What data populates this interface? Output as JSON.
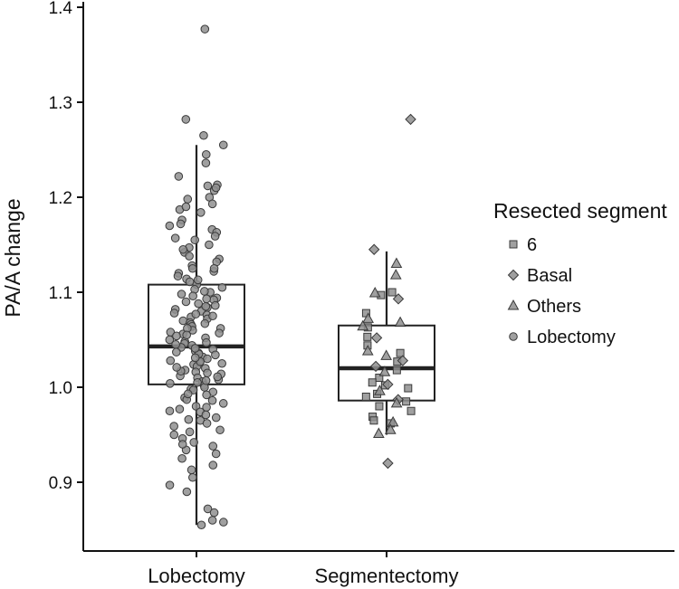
{
  "chart_data": {
    "type": "box-jitter",
    "title": "",
    "xlabel": "",
    "ylabel": "PA/A change",
    "ylim": [
      0.84,
      1.4
    ],
    "yticks": [
      0.9,
      1.0,
      1.1,
      1.2,
      1.3,
      1.4
    ],
    "ytick_labels": [
      "0.9",
      "1.0",
      "1.1",
      "1.2",
      "1.3",
      "1.4"
    ],
    "categories": [
      "Lobectomy",
      "Segmentectomy"
    ],
    "boxes": [
      {
        "category": "Lobectomy",
        "q1": 1.003,
        "median": 1.043,
        "q3": 1.108,
        "whisker_low": 0.855,
        "whisker_high": 1.255
      },
      {
        "category": "Segmentectomy",
        "q1": 0.986,
        "median": 1.02,
        "q3": 1.065,
        "whisker_low": 0.95,
        "whisker_high": 1.143
      }
    ],
    "legend": {
      "title": "Resected segment",
      "position": "right",
      "entries": [
        {
          "label": "6",
          "shape": "square"
        },
        {
          "label": "Basal",
          "shape": "diamond"
        },
        {
          "label": "Others",
          "shape": "triangle"
        },
        {
          "label": "Lobectomy",
          "shape": "circle"
        }
      ]
    },
    "series": [
      {
        "name": "Lobectomy",
        "category": "Lobectomy",
        "shape": "circle",
        "values": [
          1.377,
          1.282,
          1.265,
          1.255,
          1.245,
          1.236,
          1.222,
          1.213,
          1.212,
          1.207,
          1.2,
          1.198,
          1.193,
          1.187,
          1.184,
          1.176,
          1.172,
          1.166,
          1.163,
          1.159,
          1.157,
          1.155,
          1.15,
          1.147,
          1.142,
          1.138,
          1.135,
          1.132,
          1.128,
          1.125,
          1.122,
          1.12,
          1.117,
          1.114,
          1.111,
          1.108,
          1.105,
          1.103,
          1.1,
          1.098,
          1.096,
          1.094,
          1.092,
          1.09,
          1.088,
          1.086,
          1.084,
          1.082,
          1.08,
          1.078,
          1.076,
          1.074,
          1.072,
          1.07,
          1.068,
          1.066,
          1.064,
          1.062,
          1.06,
          1.058,
          1.056,
          1.054,
          1.052,
          1.05,
          1.048,
          1.046,
          1.044,
          1.042,
          1.04,
          1.038,
          1.036,
          1.034,
          1.032,
          1.03,
          1.028,
          1.026,
          1.024,
          1.022,
          1.02,
          1.018,
          1.016,
          1.014,
          1.012,
          1.01,
          1.008,
          1.006,
          1.004,
          1.002,
          1.0,
          0.998,
          0.995,
          0.992,
          0.989,
          0.986,
          0.983,
          0.98,
          0.977,
          0.974,
          0.971,
          0.968,
          0.965,
          0.962,
          0.959,
          0.955,
          0.95,
          0.946,
          0.942,
          0.938,
          0.934,
          0.93,
          0.925,
          0.918,
          0.913,
          0.905,
          0.897,
          0.89,
          0.872,
          0.868,
          0.86,
          0.858,
          0.855,
          1.21,
          1.19,
          1.17,
          1.145,
          1.113,
          1.101,
          1.093,
          1.085,
          1.077,
          1.067,
          1.057,
          1.047,
          1.037,
          1.027,
          1.017,
          1.007,
          0.997,
          0.987,
          0.979,
          0.966,
          0.953,
          0.94,
          1.062,
          1.045,
          1.035,
          1.025,
          1.015,
          1.005,
          1.125,
          1.075,
          1.055,
          1.041,
          1.031,
          1.021,
          1.011,
          0.993,
          0.975
        ]
      },
      {
        "name": "6",
        "category": "Segmentectomy",
        "shape": "square",
        "values": [
          1.1,
          1.097,
          1.078,
          1.063,
          1.053,
          1.044,
          1.036,
          1.027,
          1.018,
          1.01,
          1.005,
          1.002,
          0.999,
          0.993,
          0.99,
          0.985,
          0.98,
          0.975,
          0.969,
          0.965,
          0.962
        ]
      },
      {
        "name": "Basal",
        "category": "Segmentectomy",
        "shape": "diamond",
        "values": [
          1.282,
          1.145,
          1.093,
          1.052,
          1.028,
          1.022,
          1.003,
          0.987,
          0.92
        ]
      },
      {
        "name": "Others",
        "category": "Segmentectomy",
        "shape": "triangle",
        "values": [
          1.13,
          1.118,
          1.099,
          1.072,
          1.068,
          1.064,
          1.038,
          1.033,
          1.016,
          0.996,
          0.983,
          0.963,
          0.955,
          0.951
        ]
      }
    ]
  }
}
